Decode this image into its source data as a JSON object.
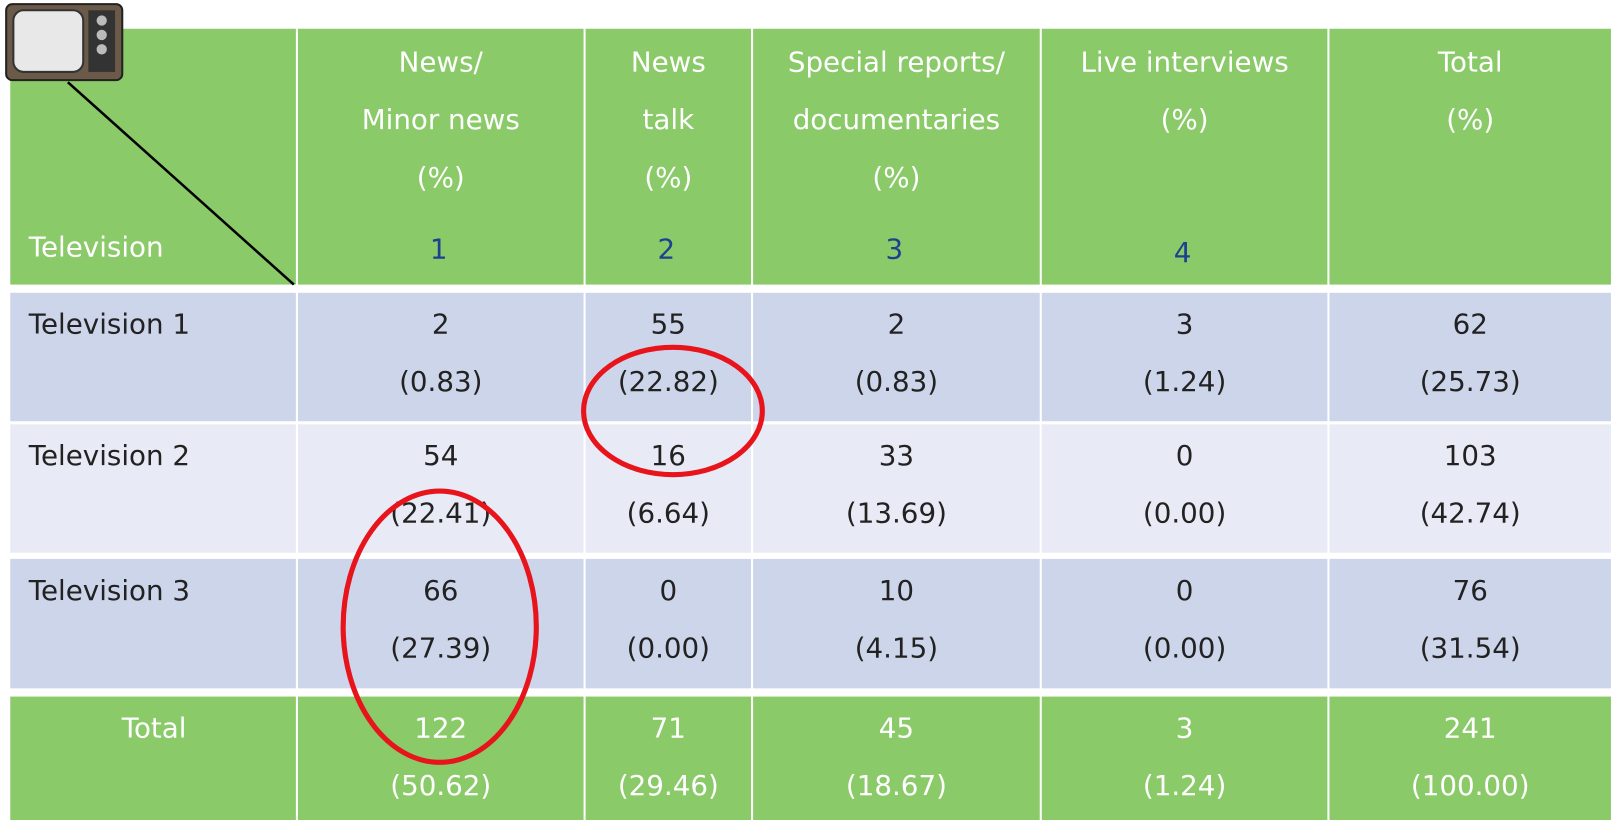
{
  "header": {
    "corner_label": "Television",
    "columns": [
      {
        "lines": [
          "News/",
          "Minor news",
          "(%)"
        ],
        "number": 1
      },
      {
        "lines": [
          "News",
          "talk",
          "(%)"
        ],
        "number": 2
      },
      {
        "lines": [
          "Special reports/",
          "documentaries",
          "(%)"
        ],
        "number": 3
      },
      {
        "lines": [
          "Live interviews",
          "(%)"
        ],
        "number": 4
      },
      {
        "lines": [
          "Total",
          "(%)"
        ]
      }
    ]
  },
  "rows": [
    {
      "label": "Television 1",
      "cells": [
        [
          2,
          "(0.83)"
        ],
        [
          55,
          "(22.82)"
        ],
        [
          2,
          "(0.83)"
        ],
        [
          3,
          "(1.24)"
        ],
        [
          62,
          "(25.73)"
        ]
      ]
    },
    {
      "label": "Television 2",
      "cells": [
        [
          54,
          "(22.41)"
        ],
        [
          16,
          "(6.64)"
        ],
        [
          33,
          "(13.69)"
        ],
        [
          0,
          "(0.00)"
        ],
        [
          103,
          "(42.74)"
        ]
      ]
    },
    {
      "label": "Television 3",
      "cells": [
        [
          66,
          "(27.39)"
        ],
        [
          0,
          "(0.00)"
        ],
        [
          10,
          "(4.15)"
        ],
        [
          0,
          "(0.00)"
        ],
        [
          76,
          "(31.54)"
        ]
      ]
    }
  ],
  "total": {
    "label": "Total",
    "cells": [
      [
        122,
        "(50.62)"
      ],
      [
        71,
        "(29.46)"
      ],
      [
        45,
        "(18.67)"
      ],
      [
        3,
        "(1.24)"
      ],
      [
        241,
        "(100.00)"
      ]
    ]
  }
}
